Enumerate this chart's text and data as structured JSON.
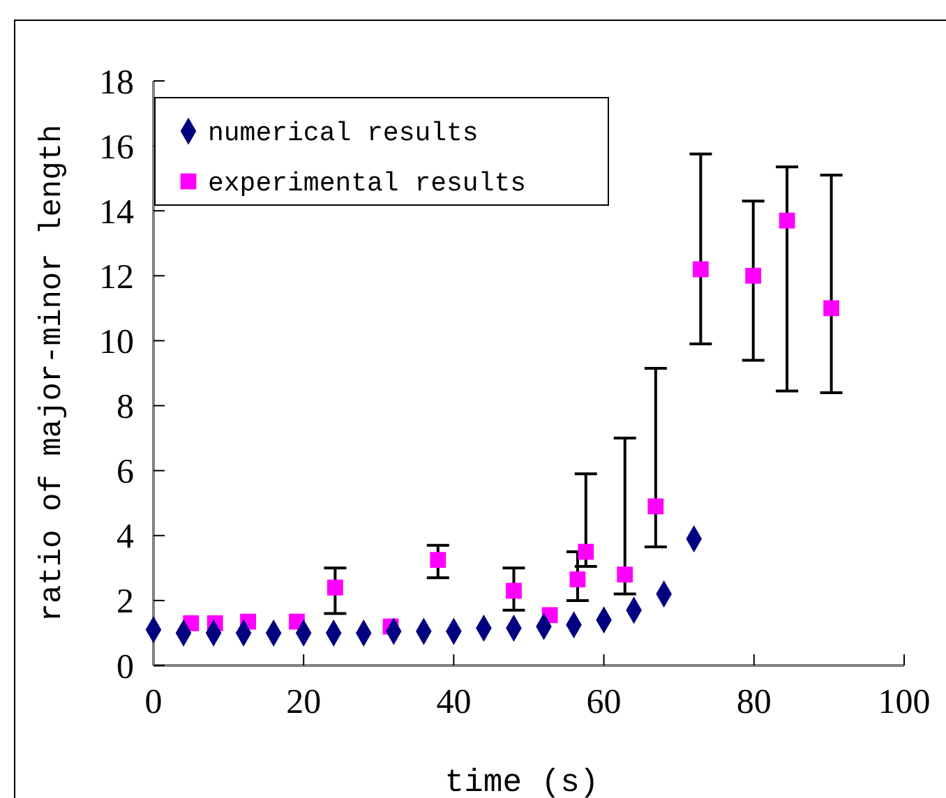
{
  "chart_data": {
    "type": "scatter",
    "xlabel": "time (s)",
    "ylabel": "ratio of major-minor length",
    "xlim": [
      0,
      100
    ],
    "xticks": [
      0,
      20,
      40,
      60,
      80,
      100
    ],
    "ylim": [
      0,
      18
    ],
    "yticks": [
      0,
      2,
      4,
      6,
      8,
      10,
      12,
      14,
      16,
      18
    ],
    "legend": "top left",
    "grid": false,
    "series": [
      {
        "name": "numerical results",
        "color": "#000080",
        "marker": "diamond",
        "x": [
          0,
          4,
          8,
          12,
          16,
          20,
          24,
          28,
          32,
          36,
          40,
          44,
          48,
          52,
          56,
          60,
          64,
          68,
          72
        ],
        "values": [
          1.1,
          1.0,
          1.0,
          1.0,
          1.0,
          1.0,
          1.0,
          1.0,
          1.05,
          1.05,
          1.05,
          1.15,
          1.15,
          1.2,
          1.25,
          1.4,
          1.7,
          2.2,
          3.9
        ]
      },
      {
        "name": "experimental results",
        "color": "#ff00ff",
        "marker": "square",
        "x": [
          5,
          8.2,
          12.6,
          19.1,
          24.2,
          31.6,
          37.9,
          48,
          52.8,
          56.5,
          57.6,
          62.8,
          66.9,
          72.9,
          79.9,
          84.4,
          90.3
        ],
        "values": [
          1.3,
          1.3,
          1.35,
          1.35,
          2.4,
          1.2,
          3.25,
          2.3,
          1.55,
          2.65,
          3.5,
          2.8,
          4.9,
          12.2,
          12.0,
          13.7,
          11.0
        ],
        "errors": [
          null,
          null,
          null,
          null,
          [
            1.6,
            3.0
          ],
          null,
          [
            2.7,
            3.7
          ],
          [
            1.7,
            3.0
          ],
          null,
          [
            2.0,
            3.5
          ],
          [
            3.05,
            5.9
          ],
          [
            2.2,
            7.0
          ],
          [
            3.65,
            9.15
          ],
          [
            9.9,
            15.75
          ],
          [
            9.4,
            14.3
          ],
          [
            8.45,
            15.35
          ],
          [
            8.4,
            15.1
          ]
        ]
      }
    ]
  }
}
